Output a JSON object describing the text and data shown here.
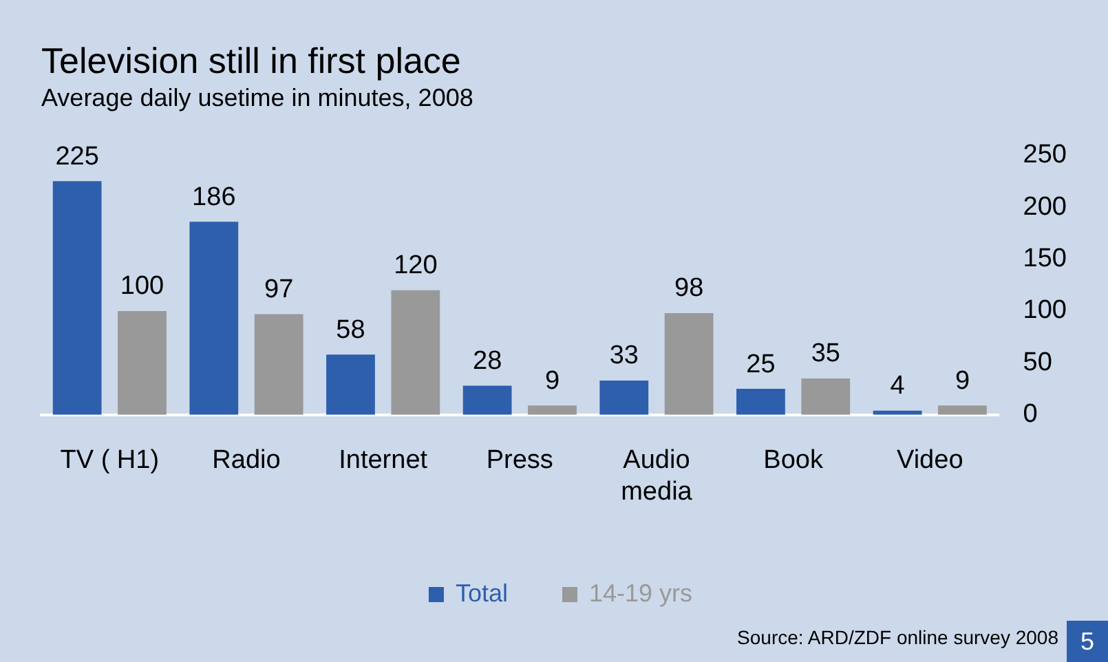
{
  "chart_data": {
    "type": "bar",
    "title": "Television still in first place",
    "subtitle": "Average daily usetime in minutes, 2008",
    "categories": [
      "TV ( H1)",
      "Radio",
      "Internet",
      "Press",
      "Audio media",
      "Book",
      "Video"
    ],
    "series": [
      {
        "name": "Total",
        "color": "#2e5fad",
        "values": [
          225,
          186,
          58,
          28,
          33,
          25,
          4
        ]
      },
      {
        "name": "14-19 yrs",
        "color": "#999999",
        "values": [
          100,
          97,
          120,
          9,
          98,
          35,
          9
        ]
      }
    ],
    "ylim": [
      0,
      250
    ],
    "yticks": [
      0,
      50,
      100,
      150,
      200,
      250
    ],
    "data_labels": true,
    "legend": "bottom",
    "grid": false,
    "annotations": [
      "Source: ARD/ZDF online survey 2008",
      "5"
    ]
  }
}
